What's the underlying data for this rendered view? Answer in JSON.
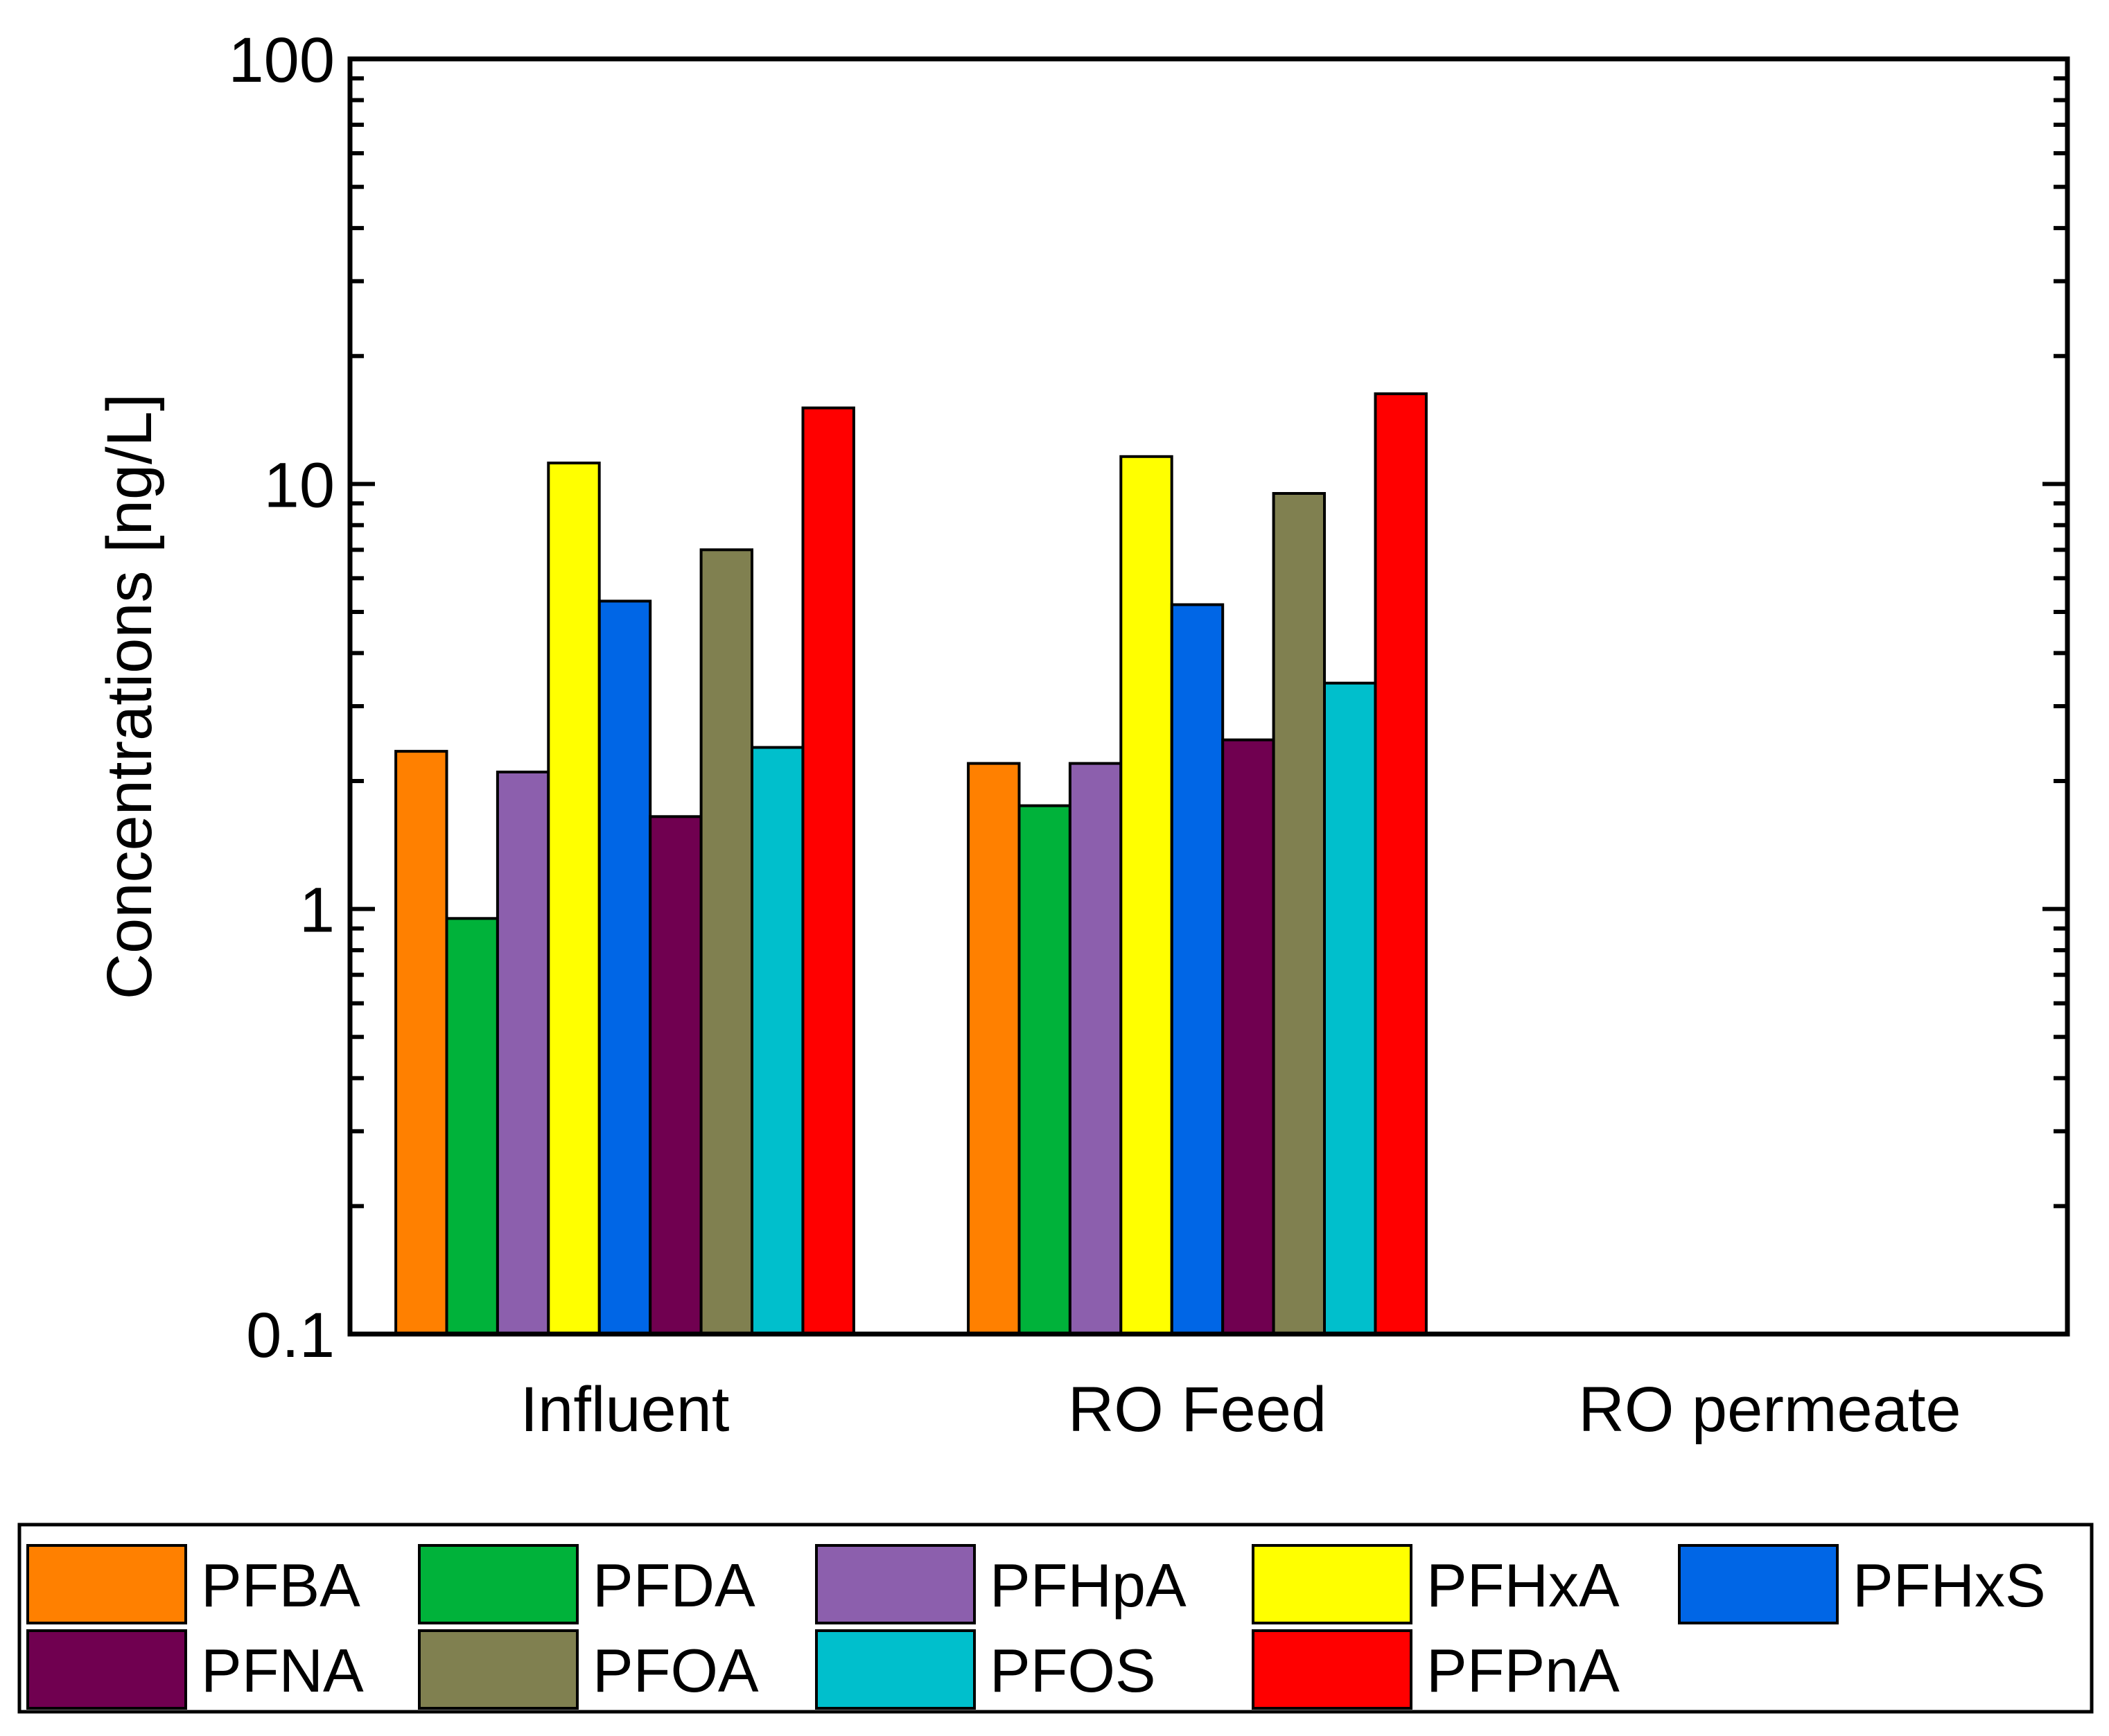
{
  "chart_data": {
    "type": "bar",
    "title": "",
    "xlabel": "",
    "ylabel": "Concentrations [ng/L]",
    "yscale": "log",
    "ylim": [
      0.1,
      100
    ],
    "ytick_values": [
      0.1,
      1,
      10,
      100
    ],
    "ytick_labels": [
      "0.1",
      "1",
      "10",
      "100"
    ],
    "grid": false,
    "legend_position": "bottom",
    "categories": [
      "Influent",
      "RO Feed",
      "RO permeate"
    ],
    "series": [
      {
        "name": "PFBA",
        "color": "#ff8000",
        "values": [
          2.35,
          2.2,
          null
        ]
      },
      {
        "name": "PFDA",
        "color": "#00b23a",
        "values": [
          0.95,
          1.75,
          null
        ]
      },
      {
        "name": "PFHpA",
        "color": "#8c5fad",
        "values": [
          2.1,
          2.2,
          null
        ]
      },
      {
        "name": "PFHxA",
        "color": "#ffff00",
        "values": [
          11.2,
          11.6,
          null
        ]
      },
      {
        "name": "PFHxS",
        "color": "#0066e6",
        "values": [
          5.3,
          5.2,
          null
        ]
      },
      {
        "name": "PFNA",
        "color": "#700050",
        "values": [
          1.65,
          2.5,
          null
        ]
      },
      {
        "name": "PFOA",
        "color": "#808050",
        "values": [
          7.0,
          9.5,
          null
        ]
      },
      {
        "name": "PFOS",
        "color": "#00bfcc",
        "values": [
          2.4,
          3.4,
          null
        ]
      },
      {
        "name": "PFPnA",
        "color": "#ff0000",
        "values": [
          15.1,
          16.3,
          null
        ]
      }
    ]
  }
}
